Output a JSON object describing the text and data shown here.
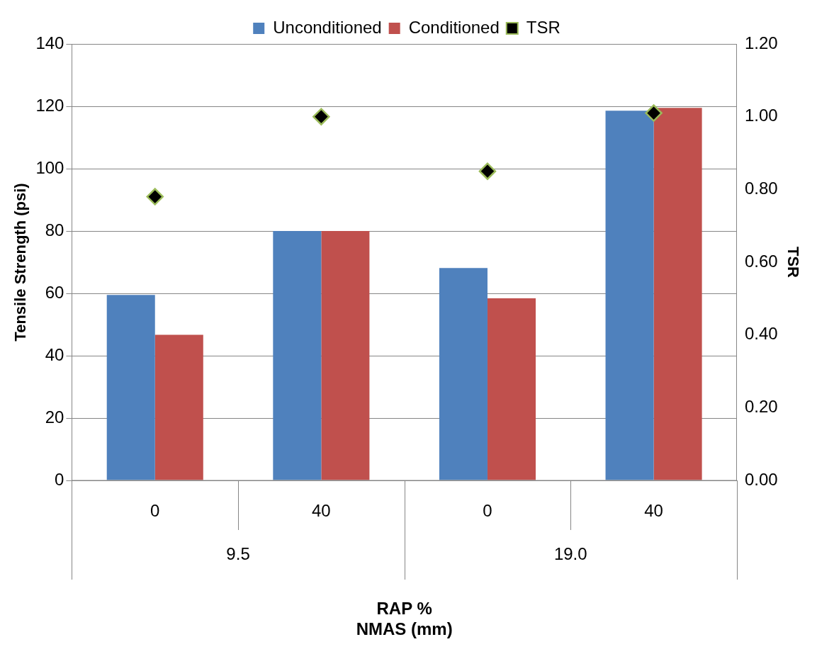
{
  "chart_data": {
    "type": "bar",
    "xlabel": "RAP %\nNMAS (mm)",
    "ylabel": "Tensile Strength (psi)",
    "y2label": "TSR",
    "categories": [
      "0",
      "40",
      "0",
      "40"
    ],
    "annotations": [
      "9.5",
      "19.0"
    ],
    "series": [
      {
        "name": "Unconditioned",
        "color": "#4f81bd",
        "values": [
          59.5,
          80.0,
          68.1,
          118.6
        ]
      },
      {
        "name": "Conditioned",
        "color": "#c0504d",
        "values": [
          46.7,
          80.0,
          58.4,
          119.5
        ]
      },
      {
        "name": "TSR",
        "type": "scatter",
        "axis": "y2",
        "marker": "diamond",
        "color": "#000000",
        "values": [
          0.78,
          1.0,
          0.85,
          1.01
        ]
      }
    ],
    "ylim": [
      0,
      140
    ],
    "yticks": [
      0,
      20,
      40,
      60,
      80,
      100,
      120,
      140
    ],
    "y2lim": [
      0,
      1.2
    ],
    "y2ticks": [
      {
        "value": 0,
        "label": "0.00"
      },
      {
        "value": 0.2,
        "label": "0.20"
      },
      {
        "value": 0.4,
        "label": "0.40"
      },
      {
        "value": 0.6,
        "label": "0.60"
      },
      {
        "value": 0.8,
        "label": "0.80"
      },
      {
        "value": 1.0,
        "label": "1.00"
      },
      {
        "value": 1.2,
        "label": "1.20"
      }
    ],
    "grid": "y",
    "legend": "top"
  }
}
